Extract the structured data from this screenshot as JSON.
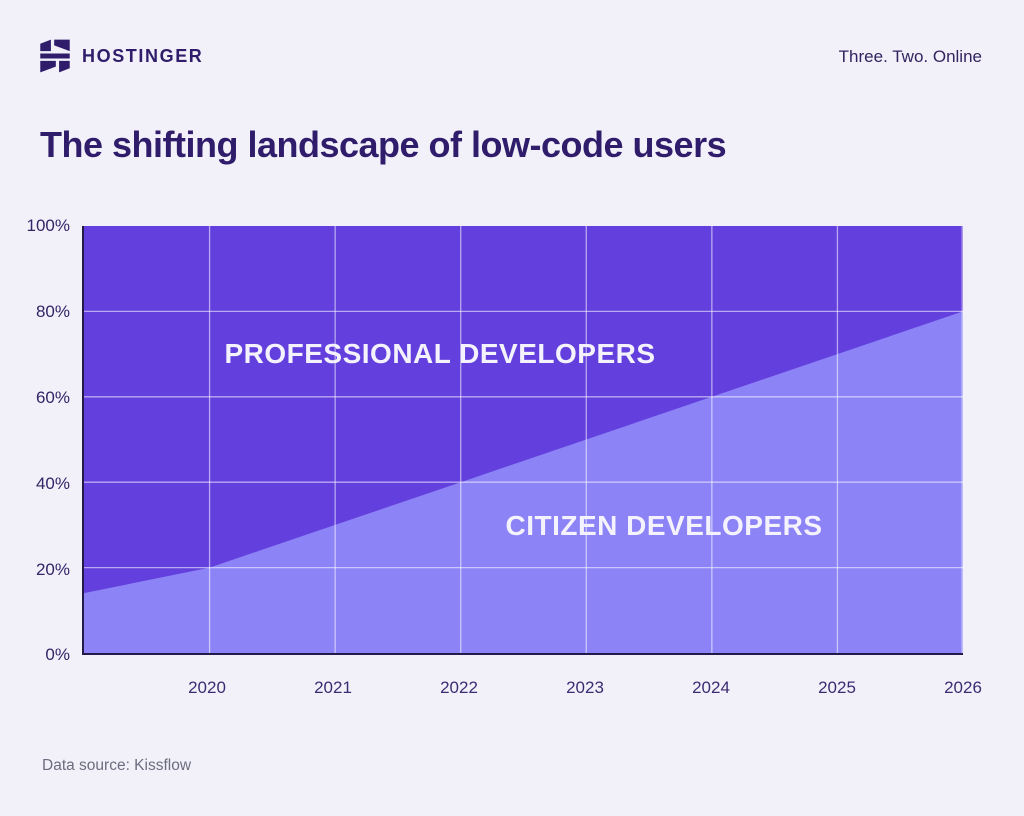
{
  "header": {
    "brand": "HOSTINGER",
    "tagline": "Three. Two. Online"
  },
  "title": "The shifting landscape of low-code users",
  "footer": {
    "source": "Data source: Kissflow"
  },
  "chart_data": {
    "type": "area",
    "stacked": true,
    "title": "The shifting landscape of low-code users",
    "x": [
      2019,
      2020,
      2021,
      2022,
      2023,
      2024,
      2025,
      2026
    ],
    "series": [
      {
        "name": "CITIZEN DEVELOPERS",
        "values": [
          14,
          20,
          30,
          40,
          50,
          60,
          70,
          80
        ],
        "position": "bottom"
      },
      {
        "name": "PROFESSIONAL DEVELOPERS",
        "values": [
          86,
          80,
          70,
          60,
          50,
          40,
          30,
          20
        ],
        "position": "top"
      }
    ],
    "labels": {
      "professional": "PROFESSIONAL DEVELOPERS",
      "citizen": "CITIZEN DEVELOPERS"
    },
    "xlim": [
      2019,
      2026
    ],
    "ylim": [
      0,
      100
    ],
    "y_tick_labels": [
      "100%",
      "80%",
      "60%",
      "40%",
      "20%",
      "0%"
    ],
    "x_tick_labels": [
      "2020",
      "2021",
      "2022",
      "2023",
      "2024",
      "2025",
      "2026"
    ],
    "grid": true,
    "grid_x": [
      2020,
      2021,
      2022,
      2023,
      2024,
      2025,
      2026
    ],
    "grid_y": [
      20,
      40,
      60,
      80
    ],
    "legend_position": "inside-areas",
    "colors": {
      "professional_area": "#6340dd",
      "citizen_area": "#8c83f6",
      "gridline": "rgba(255,255,255,0.55)",
      "axis": "#231a49",
      "background": "#f2f1fa",
      "brand_text": "#2f1c6a",
      "area_label_text": "#f4f2fd"
    }
  }
}
